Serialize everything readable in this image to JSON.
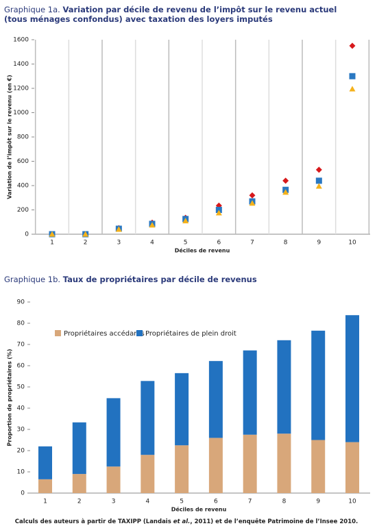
{
  "chart_data": [
    {
      "type": "scatter",
      "label": "Graphique 1a.",
      "title": [
        "Variation par décile de revenu de l’impôt sur le revenu actuel",
        "(tous ménages confondus) avec taxation des loyers imputés"
      ],
      "xlabel": "Déciles de revenu",
      "ylabel": "Variation de l’impôt sur le revenu (en €)",
      "categories": [
        "1",
        "2",
        "3",
        "4",
        "5",
        "6",
        "7",
        "8",
        "9",
        "10"
      ],
      "series": [
        {
          "color": "#d7191c",
          "marker": "diamond",
          "values": [
            0,
            0,
            50,
            95,
            135,
            235,
            320,
            440,
            530,
            1550
          ]
        },
        {
          "color": "#2a78c2",
          "marker": "square",
          "values": [
            0,
            0,
            45,
            85,
            125,
            200,
            270,
            365,
            440,
            1300
          ]
        },
        {
          "color": "#f4b21c",
          "marker": "triangle",
          "values": [
            0,
            0,
            40,
            75,
            110,
            175,
            255,
            345,
            395,
            1195
          ]
        }
      ],
      "ylim": [
        0,
        1600
      ],
      "yticks": [
        0,
        200,
        400,
        600,
        800,
        1000,
        1200,
        1400,
        1600
      ],
      "grid": "x"
    },
    {
      "type": "bar",
      "stacked": true,
      "label": "Graphique 1b.",
      "title": [
        "Taux de propriétaires par décile de revenus"
      ],
      "xlabel": "Déciles de revenu",
      "ylabel": "Proportion de propriétaires (%)",
      "categories": [
        "1",
        "2",
        "3",
        "4",
        "5",
        "6",
        "7",
        "8",
        "9",
        "10"
      ],
      "series": [
        {
          "name": "Propriétaires accédants",
          "color": "#d8a77a",
          "values": [
            6.5,
            9,
            12.5,
            18,
            22.5,
            26,
            27.5,
            28,
            25,
            24
          ]
        },
        {
          "name": "Propriétaires de plein droit",
          "color": "#2272c0",
          "values": [
            15.5,
            24.3,
            32.2,
            34.8,
            34,
            36.2,
            39.7,
            44,
            51.5,
            59.8
          ]
        }
      ],
      "ylim": [
        0,
        90
      ],
      "yticks": [
        0,
        10,
        20,
        30,
        40,
        50,
        60,
        70,
        80,
        90
      ],
      "grid": "none",
      "legend": "top"
    }
  ],
  "source": [
    "Calculs des auteurs à partir de TAXIPP (Landais ",
    "et al.",
    ", 2011) et de l’enquête Patrimoine de l’Insee 2010."
  ]
}
